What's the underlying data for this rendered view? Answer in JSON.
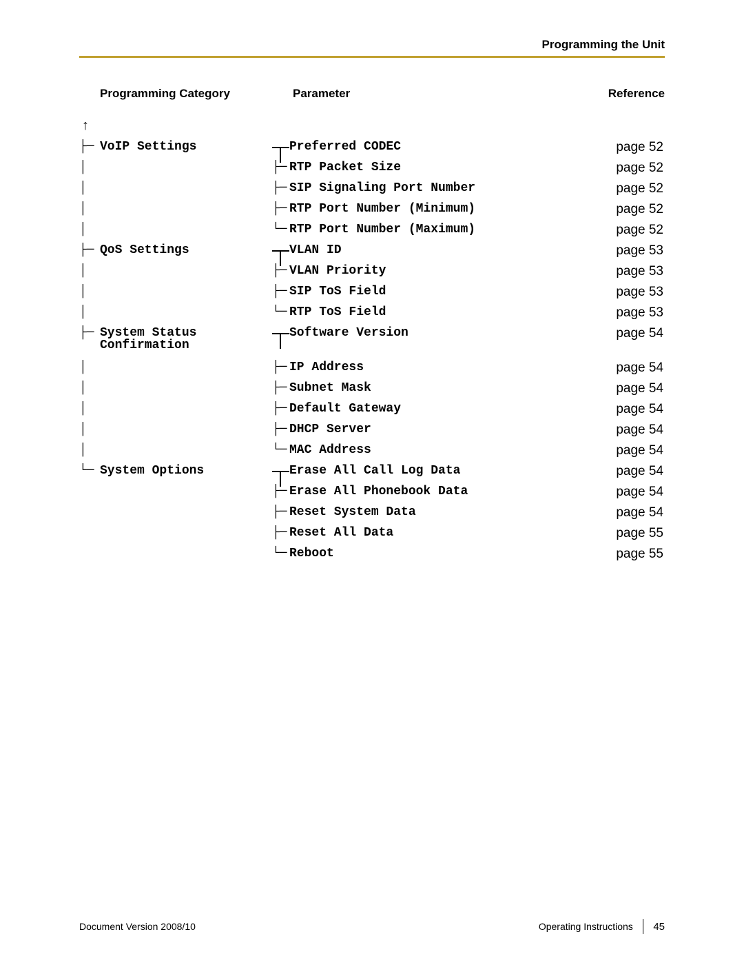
{
  "header": {
    "title": "Programming the Unit"
  },
  "columns": {
    "category": "Programming Category",
    "parameter": "Parameter",
    "reference": "Reference"
  },
  "rows": [
    {
      "cat_glyph": "├─",
      "cat_text": "VoIP Settings",
      "connector": "t",
      "param_glyph": "",
      "param_text": "Preferred CODEC",
      "ref": "page 52"
    },
    {
      "cat_glyph": "│",
      "cat_text": "",
      "connector": "",
      "param_glyph": "├─",
      "param_text": "RTP Packet Size",
      "ref": "page 52"
    },
    {
      "cat_glyph": "│",
      "cat_text": "",
      "connector": "",
      "param_glyph": "├─",
      "param_text": "SIP Signaling Port Number",
      "ref": "page 52"
    },
    {
      "cat_glyph": "│",
      "cat_text": "",
      "connector": "",
      "param_glyph": "├─",
      "param_text": "RTP Port Number (Minimum)",
      "ref": "page 52"
    },
    {
      "cat_glyph": "│",
      "cat_text": "",
      "connector": "",
      "param_glyph": "└─",
      "param_text": "RTP Port Number (Maximum)",
      "ref": "page 52"
    },
    {
      "cat_glyph": "├─",
      "cat_text": "QoS Settings",
      "connector": "t",
      "param_glyph": "",
      "param_text": "VLAN ID",
      "ref": "page 53"
    },
    {
      "cat_glyph": "│",
      "cat_text": "",
      "connector": "",
      "param_glyph": "├─",
      "param_text": "VLAN Priority",
      "ref": "page 53"
    },
    {
      "cat_glyph": "│",
      "cat_text": "",
      "connector": "",
      "param_glyph": "├─",
      "param_text": "SIP ToS Field",
      "ref": "page 53"
    },
    {
      "cat_glyph": "│",
      "cat_text": "",
      "connector": "",
      "param_glyph": "└─",
      "param_text": "RTP ToS Field",
      "ref": "page 53"
    },
    {
      "cat_glyph": "├─",
      "cat_text": "System Status Confirmation",
      "connector": "t",
      "param_glyph": "",
      "param_text": "Software Version",
      "ref": "page 54",
      "tall": true
    },
    {
      "cat_glyph": "│",
      "cat_text": "",
      "connector": "",
      "param_glyph": "├─",
      "param_text": "IP Address",
      "ref": "page 54"
    },
    {
      "cat_glyph": "│",
      "cat_text": "",
      "connector": "",
      "param_glyph": "├─",
      "param_text": "Subnet Mask",
      "ref": "page 54"
    },
    {
      "cat_glyph": "│",
      "cat_text": "",
      "connector": "",
      "param_glyph": "├─",
      "param_text": "Default Gateway",
      "ref": "page 54"
    },
    {
      "cat_glyph": "│",
      "cat_text": "",
      "connector": "",
      "param_glyph": "├─",
      "param_text": "DHCP Server",
      "ref": "page 54"
    },
    {
      "cat_glyph": "│",
      "cat_text": "",
      "connector": "",
      "param_glyph": "└─",
      "param_text": "MAC Address",
      "ref": "page 54"
    },
    {
      "cat_glyph": "└─",
      "cat_text": "System Options",
      "connector": "t",
      "param_glyph": "",
      "param_text": "Erase All Call Log Data",
      "ref": "page 54"
    },
    {
      "cat_glyph": "",
      "cat_text": "",
      "connector": "",
      "param_glyph": "├─",
      "param_text": "Erase All Phonebook Data",
      "ref": "page 54"
    },
    {
      "cat_glyph": "",
      "cat_text": "",
      "connector": "",
      "param_glyph": "├─",
      "param_text": "Reset System Data",
      "ref": "page 54"
    },
    {
      "cat_glyph": "",
      "cat_text": "",
      "connector": "",
      "param_glyph": "├─",
      "param_text": "Reset All Data",
      "ref": "page 55"
    },
    {
      "cat_glyph": "",
      "cat_text": "",
      "connector": "",
      "param_glyph": "└─",
      "param_text": "Reboot",
      "ref": "page 55"
    }
  ],
  "footer": {
    "left": "Document Version   2008/10",
    "right": "Operating Instructions",
    "page": "45"
  },
  "colors": {
    "divider": "#c0a030",
    "text": "#000000",
    "background": "#ffffff"
  }
}
